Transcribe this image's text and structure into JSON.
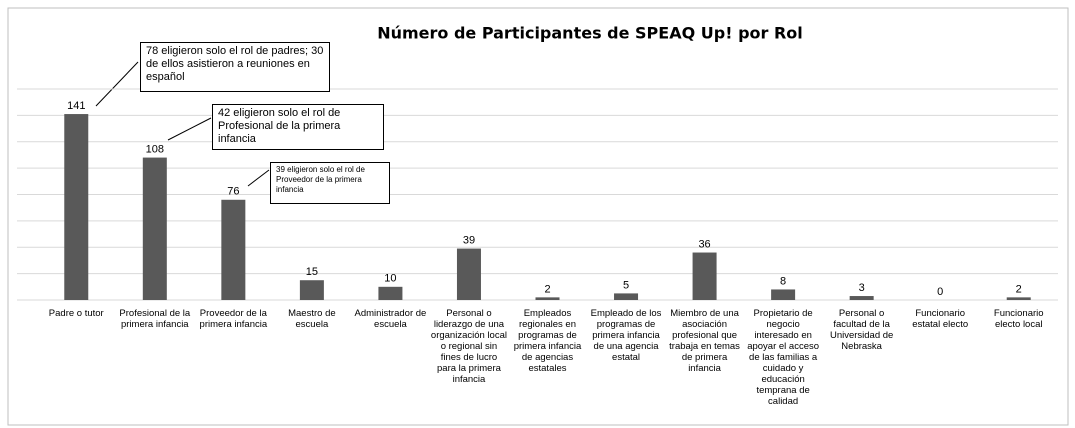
{
  "chart_data": {
    "type": "bar",
    "title": "Número de Participantes de SPEAQ Up! por Rol",
    "categories": [
      "Padre o tutor",
      "Profesional de la primera infancia",
      "Proveedor de la primera infancia",
      "Maestro de escuela",
      "Administrador de escuela",
      "Personal o liderazgo de una organización local o regional sin fines de lucro para la primera infancia",
      "Empleados regionales en programas de primera infancia de agencias estatales",
      "Empleado de los programas de primera infancia de una agencia estatal",
      "Miembro de una asociación profesional que trabaja en temas de primera infancia",
      "Propietario de negocio interesado en apoyar el acceso de las familias a cuidado y educación temprana de calidad",
      "Personal o facultad de la Universidad de Nebraska",
      "Funcionario estatal electo",
      "Funcionario electo local"
    ],
    "values": [
      141,
      108,
      76,
      15,
      10,
      39,
      2,
      5,
      36,
      8,
      3,
      0,
      2
    ],
    "color": "#595959",
    "ylim": [
      0,
      160
    ],
    "yticks": [
      0,
      20,
      40,
      60,
      80,
      100,
      120,
      140,
      160
    ],
    "grid": true,
    "annotations": [
      "78 eligieron solo el rol de padres; 30 de ellos asistieron a reuniones en español",
      "42 eligieron solo el rol de Profesional de la primera infancia",
      "39 eligieron solo el rol de Proveedor de la primera infancia"
    ]
  }
}
